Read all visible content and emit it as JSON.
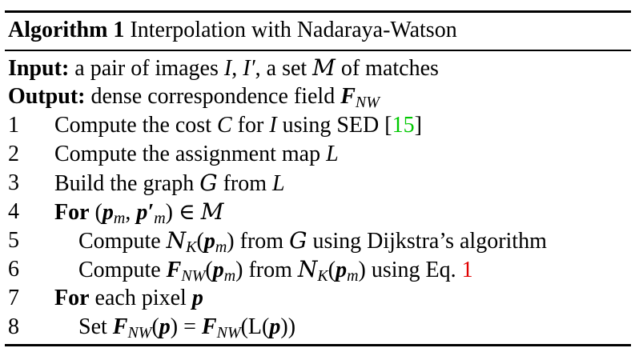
{
  "algorithm": {
    "title_label": "Algorithm 1",
    "title_text": "Interpolation with Nadaraya-Watson",
    "input_label": "Input:",
    "input_text_1": "a pair of images",
    "input_I": "I",
    "input_sep": ",",
    "input_Iprime": "I′",
    "input_text_2": ", a set",
    "input_M": "M",
    "input_text_3": "of matches",
    "output_label": "Output:",
    "output_text": "dense correspondence field",
    "output_F": "F",
    "output_sub": "NW",
    "lines": [
      {
        "num": "1",
        "a": "Compute the cost",
        "b": "C",
        "c": "for",
        "d": "I",
        "e": "using SED [",
        "cite": "15",
        "f": "]"
      },
      {
        "num": "2",
        "a": "Compute the assignment map",
        "b": "L"
      },
      {
        "num": "3",
        "a": "Build the graph",
        "b": "G",
        "c": "from",
        "d": "L"
      },
      {
        "num": "4",
        "kw": "For",
        "a": "(",
        "p": "p",
        "psub": "m",
        "sep": ",",
        "pp": "p′",
        "ppsub": "m",
        "b": ") ∈",
        "M": "M"
      },
      {
        "num": "5",
        "a": "Compute",
        "N": "N",
        "Nsub": "K",
        "b": "(",
        "p": "p",
        "psub": "m",
        "c": ") from",
        "G": "G",
        "d": "using Dijkstra’s algorithm"
      },
      {
        "num": "6",
        "a": "Compute",
        "F": "F",
        "Fsub": "NW",
        "b": "(",
        "p": "p",
        "psub": "m",
        "c": ") from",
        "N": "N",
        "Nsub": "K",
        "d": "(",
        "p2": "p",
        "p2sub": "m",
        "e": ") using Eq.",
        "eq": "1"
      },
      {
        "num": "7",
        "kw": "For",
        "a": "each pixel",
        "p": "p"
      },
      {
        "num": "8",
        "a": "Set",
        "F": "F",
        "Fsub": "NW",
        "b": "(",
        "p": "p",
        "c": ") =",
        "F2": "F",
        "F2sub": "NW",
        "d": "(L(",
        "p2": "p",
        "e": "))"
      }
    ]
  },
  "colors": {
    "citation": "#00c800",
    "equation_ref": "#e00000"
  }
}
